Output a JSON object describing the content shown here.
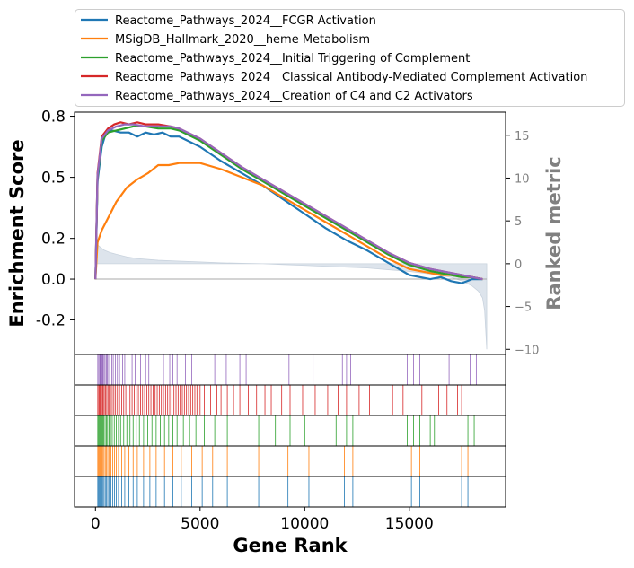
{
  "chart_data": {
    "type": "line",
    "xlabel": "Gene Rank",
    "ylabel": "Enrichment Score",
    "y2label": "Ranked metric",
    "xlim": [
      -1000,
      19600
    ],
    "ylim": [
      -0.37,
      0.82
    ],
    "y2lim": [
      -10.6,
      17.7
    ],
    "x_ticks": [
      0,
      5000,
      10000,
      15000
    ],
    "x_tick_labels": [
      "0",
      "5000",
      "10000",
      "15000"
    ],
    "y_ticks": [
      0.8,
      0.5,
      0.2,
      0.0,
      -0.2
    ],
    "y_tick_labels": [
      "0.8",
      "0.5",
      "0.2",
      "0.0",
      "-0.2"
    ],
    "y2_ticks": [
      15,
      10,
      5,
      0,
      -5,
      -10
    ],
    "y2_tick_labels": [
      "15",
      "10",
      "5",
      "0",
      "−5",
      "−10"
    ],
    "legend_position": "top",
    "series": [
      {
        "name": "Reactome_Pathways_2024__FCGR Activation",
        "color": "#1f77b4",
        "x": [
          0,
          100,
          300,
          500,
          800,
          1200,
          1600,
          2000,
          2400,
          2800,
          3200,
          3600,
          4000,
          5000,
          6000,
          7000,
          8000,
          9000,
          10000,
          11000,
          12000,
          13000,
          14000,
          15000,
          15500,
          16000,
          16500,
          17000,
          17500,
          18000,
          18500
        ],
        "y": [
          0.0,
          0.48,
          0.65,
          0.72,
          0.73,
          0.72,
          0.72,
          0.7,
          0.72,
          0.71,
          0.72,
          0.7,
          0.7,
          0.65,
          0.58,
          0.52,
          0.46,
          0.39,
          0.32,
          0.25,
          0.19,
          0.14,
          0.08,
          0.02,
          0.01,
          0.0,
          0.01,
          -0.01,
          -0.02,
          0.0,
          0.0
        ]
      },
      {
        "name": "MSigDB_Hallmark_2020__heme Metabolism",
        "color": "#ff7f0e",
        "x": [
          0,
          100,
          300,
          600,
          1000,
          1500,
          2000,
          2500,
          3000,
          3500,
          4000,
          5000,
          6000,
          7000,
          8000,
          9000,
          10000,
          11000,
          12000,
          13000,
          14000,
          15000,
          15500,
          16000,
          16500,
          17000,
          17500,
          18000,
          18500
        ],
        "y": [
          0.0,
          0.18,
          0.24,
          0.3,
          0.38,
          0.45,
          0.49,
          0.52,
          0.56,
          0.56,
          0.57,
          0.57,
          0.54,
          0.5,
          0.46,
          0.4,
          0.34,
          0.28,
          0.22,
          0.16,
          0.1,
          0.05,
          0.04,
          0.03,
          0.02,
          0.02,
          0.01,
          0.01,
          0.0
        ]
      },
      {
        "name": "Reactome_Pathways_2024__Initial Triggering of Complement",
        "color": "#2ca02c",
        "x": [
          0,
          100,
          300,
          600,
          1000,
          1400,
          1800,
          2400,
          3000,
          3600,
          4000,
          5000,
          6000,
          7000,
          8000,
          9000,
          10000,
          11000,
          12000,
          13000,
          14000,
          15000,
          16000,
          17000,
          17500,
          18000,
          18500
        ],
        "y": [
          0.0,
          0.5,
          0.68,
          0.72,
          0.73,
          0.74,
          0.75,
          0.75,
          0.74,
          0.74,
          0.73,
          0.68,
          0.61,
          0.54,
          0.48,
          0.42,
          0.36,
          0.3,
          0.24,
          0.18,
          0.12,
          0.07,
          0.04,
          0.02,
          0.01,
          0.01,
          0.0
        ]
      },
      {
        "name": "Reactome_Pathways_2024__Classical Antibody-Mediated Complement Activation",
        "color": "#d62728",
        "x": [
          0,
          100,
          300,
          600,
          900,
          1200,
          1600,
          2000,
          2400,
          3000,
          3600,
          4000,
          5000,
          6000,
          7000,
          8000,
          9000,
          10000,
          11000,
          12000,
          13000,
          14000,
          15000,
          16000,
          17000,
          17500,
          18000,
          18500
        ],
        "y": [
          0.0,
          0.52,
          0.7,
          0.74,
          0.76,
          0.77,
          0.76,
          0.77,
          0.76,
          0.76,
          0.75,
          0.74,
          0.69,
          0.62,
          0.55,
          0.49,
          0.43,
          0.37,
          0.31,
          0.25,
          0.19,
          0.13,
          0.08,
          0.05,
          0.03,
          0.02,
          0.01,
          0.0
        ]
      },
      {
        "name": "Reactome_Pathways_2024__Creation of C4 and C2 Activators",
        "color": "#9467bd",
        "x": [
          0,
          100,
          300,
          600,
          1000,
          1400,
          1800,
          2400,
          3000,
          3600,
          4000,
          5000,
          6000,
          7000,
          8000,
          9000,
          10000,
          11000,
          12000,
          13000,
          14000,
          15000,
          16000,
          17000,
          17500,
          18000,
          18500
        ],
        "y": [
          0.0,
          0.51,
          0.69,
          0.73,
          0.75,
          0.76,
          0.76,
          0.75,
          0.75,
          0.75,
          0.74,
          0.69,
          0.62,
          0.55,
          0.49,
          0.43,
          0.37,
          0.31,
          0.25,
          0.19,
          0.13,
          0.08,
          0.05,
          0.03,
          0.02,
          0.01,
          0.0
        ]
      }
    ],
    "ranked_metric": {
      "x": [
        0,
        50,
        100,
        200,
        400,
        700,
        1000,
        1500,
        2000,
        3000,
        4000,
        5000,
        6000,
        7000,
        8000,
        9000,
        10000,
        11000,
        12000,
        13000,
        14000,
        15000,
        16000,
        17000,
        17500,
        18000,
        18300,
        18500,
        18600,
        18700
      ],
      "y": [
        3.0,
        2.5,
        2.2,
        2.0,
        1.6,
        1.3,
        1.1,
        0.8,
        0.6,
        0.4,
        0.3,
        0.2,
        0.1,
        0.05,
        0.0,
        -0.1,
        -0.2,
        -0.3,
        -0.4,
        -0.5,
        -0.7,
        -0.9,
        -1.2,
        -1.6,
        -2.0,
        -2.6,
        -3.2,
        -4.0,
        -5.5,
        -10.0
      ],
      "color": "#dde4ec"
    },
    "hit_positions": [
      [
        110,
        160,
        210,
        230,
        260,
        290,
        330,
        360,
        410,
        460,
        520,
        570,
        630,
        700,
        780,
        850,
        950,
        1050,
        1150,
        1300,
        1400,
        1550,
        1750,
        1900,
        2150,
        2400,
        2550,
        3250,
        3550,
        3700,
        3900,
        4300,
        4600,
        5700,
        6250,
        6900,
        7200,
        9250,
        10400,
        11800,
        12000,
        12200,
        12500,
        14900,
        15200,
        15500,
        16900,
        17900,
        18200
      ],
      [
        110,
        160,
        200,
        240,
        280,
        330,
        370,
        420,
        480,
        540,
        600,
        660,
        720,
        800,
        880,
        960,
        1050,
        1150,
        1250,
        1350,
        1450,
        1550,
        1650,
        1750,
        1850,
        1950,
        2050,
        2150,
        2250,
        2350,
        2450,
        2550,
        2650,
        2750,
        2850,
        2950,
        3050,
        3150,
        3250,
        3350,
        3450,
        3550,
        3650,
        3750,
        3850,
        3950,
        4050,
        4150,
        4250,
        4350,
        4450,
        4550,
        4650,
        4750,
        4850,
        5000,
        5200,
        5500,
        5800,
        6000,
        6300,
        6600,
        6900,
        7300,
        7700,
        8100,
        8400,
        8900,
        9300,
        9900,
        10500,
        11100,
        11600,
        12000,
        12600,
        13100,
        14200,
        14700,
        15600,
        16400,
        16800,
        17300,
        17500
      ],
      [
        110,
        150,
        190,
        230,
        270,
        310,
        350,
        400,
        460,
        520,
        580,
        650,
        720,
        800,
        900,
        1000,
        1100,
        1200,
        1350,
        1500,
        1650,
        1800,
        1950,
        2100,
        2300,
        2500,
        2700,
        2900,
        3100,
        3300,
        3500,
        3700,
        3900,
        4200,
        4500,
        4800,
        5200,
        5700,
        6300,
        7000,
        7800,
        8600,
        9300,
        10000,
        11500,
        12000,
        12300,
        14900,
        15200,
        15500,
        16000,
        16200,
        17800,
        18100
      ],
      [
        110,
        150,
        190,
        230,
        270,
        310,
        360,
        410,
        470,
        530,
        590,
        660,
        740,
        820,
        910,
        1000,
        1100,
        1250,
        1400,
        1600,
        1800,
        2000,
        2300,
        2600,
        2900,
        3300,
        3700,
        4100,
        4600,
        5100,
        5600,
        6300,
        7000,
        7800,
        9200,
        10200,
        11900,
        12300,
        15100,
        15500,
        17500,
        17800
      ],
      [
        110,
        150,
        190,
        230,
        270,
        310,
        360,
        410,
        470,
        530,
        590,
        660,
        740,
        820,
        910,
        1000,
        1100,
        1250,
        1400,
        1600,
        1800,
        2000,
        2300,
        2600,
        2900,
        3300,
        3700,
        4100,
        4600,
        5100,
        5600,
        6300,
        7000,
        7800,
        9200,
        10200,
        11900,
        12300,
        15100,
        15500,
        17500,
        17800
      ]
    ]
  }
}
